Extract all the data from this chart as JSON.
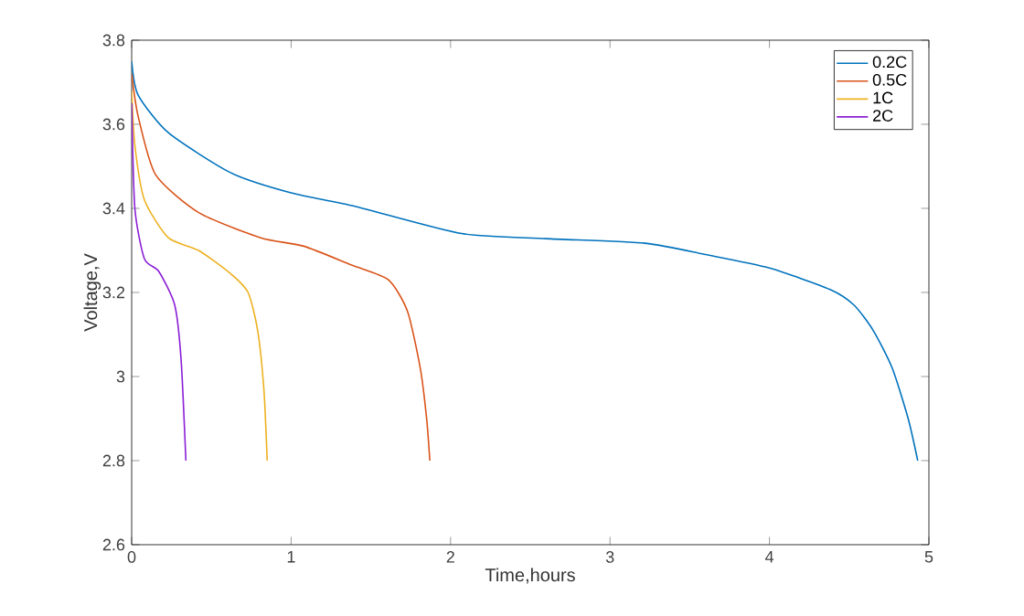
{
  "chart_data": {
    "type": "line",
    "xlabel": "Time,hours",
    "ylabel": "Voltage,V",
    "xlim": [
      0,
      5
    ],
    "ylim": [
      2.6,
      3.8
    ],
    "xticks": [
      0,
      1,
      2,
      3,
      4,
      5
    ],
    "yticks": [
      2.6,
      2.8,
      3,
      3.2,
      3.4,
      3.6,
      3.8
    ],
    "legend": "top right",
    "grid": false,
    "marker": "none",
    "line_style": "solid",
    "series": [
      {
        "name": "0.2C",
        "color": "#0072bd",
        "x": [
          0,
          0.04,
          0.23,
          0.62,
          1.0,
          1.4,
          2.07,
          2.6,
          3.22,
          3.6,
          4.0,
          4.38,
          4.53,
          4.65,
          4.77,
          4.87,
          4.93
        ],
        "values": [
          3.75,
          3.67,
          3.58,
          3.485,
          3.437,
          3.405,
          3.34,
          3.328,
          3.317,
          3.29,
          3.258,
          3.207,
          3.17,
          3.11,
          3.02,
          2.9,
          2.8
        ]
      },
      {
        "name": "0.5C",
        "color": "#d95319",
        "x": [
          0,
          0.04,
          0.15,
          0.42,
          0.81,
          1.08,
          1.38,
          1.61,
          1.73,
          1.81,
          1.85,
          1.87
        ],
        "values": [
          3.72,
          3.62,
          3.48,
          3.39,
          3.33,
          3.31,
          3.265,
          3.23,
          3.155,
          3.02,
          2.9,
          2.8
        ]
      },
      {
        "name": "1C",
        "color": "#edb120",
        "x": [
          0,
          0.02,
          0.08,
          0.23,
          0.42,
          0.62,
          0.73,
          0.79,
          0.83,
          0.85
        ],
        "values": [
          3.68,
          3.55,
          3.42,
          3.33,
          3.3,
          3.245,
          3.2,
          3.11,
          2.965,
          2.8
        ]
      },
      {
        "name": "2C",
        "color": "#8b1fd6",
        "x": [
          0,
          0.02,
          0.08,
          0.17,
          0.27,
          0.31,
          0.34
        ],
        "values": [
          3.65,
          3.4,
          3.28,
          3.25,
          3.17,
          3.04,
          2.8
        ]
      }
    ]
  }
}
